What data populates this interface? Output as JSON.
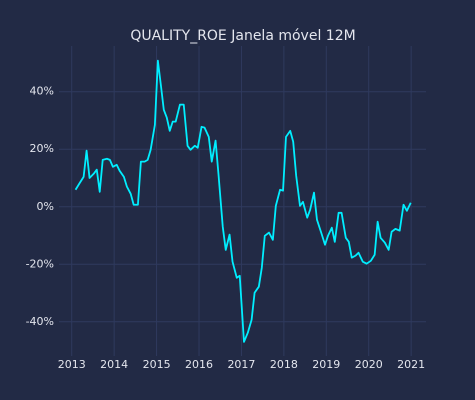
{
  "chart_data": {
    "type": "line",
    "title": "QUALITY_ROE Janela móvel 12M",
    "x": [
      2013.09,
      2013.19,
      2013.28,
      2013.35,
      2013.42,
      2013.52,
      2013.59,
      2013.66,
      2013.73,
      2013.83,
      2013.9,
      2013.97,
      2014.06,
      2014.13,
      2014.23,
      2014.3,
      2014.39,
      2014.46,
      2014.56,
      2014.63,
      2014.72,
      2014.79,
      2014.86,
      2014.96,
      2015.03,
      2015.1,
      2015.17,
      2015.24,
      2015.31,
      2015.38,
      2015.45,
      2015.55,
      2015.64,
      2015.73,
      2015.8,
      2015.9,
      2015.97,
      2016.06,
      2016.13,
      2016.23,
      2016.3,
      2016.39,
      2016.46,
      2016.56,
      2016.63,
      2016.72,
      2016.79,
      2016.89,
      2016.96,
      2017.06,
      2017.15,
      2017.24,
      2017.31,
      2017.41,
      2017.48,
      2017.55,
      2017.65,
      2017.74,
      2017.81,
      2017.91,
      2017.98,
      2018.05,
      2018.15,
      2018.22,
      2018.29,
      2018.38,
      2018.45,
      2018.55,
      2018.62,
      2018.71,
      2018.78,
      2018.88,
      2018.97,
      2019.04,
      2019.13,
      2019.2,
      2019.29,
      2019.36,
      2019.46,
      2019.53,
      2019.6,
      2019.69,
      2019.76,
      2019.86,
      2019.95,
      2020.05,
      2020.14,
      2020.21,
      2020.28,
      2020.38,
      2020.47,
      2020.54,
      2020.63,
      2020.73,
      2020.82,
      2020.9,
      2020.99
    ],
    "series": [
      {
        "name": "QUALITY_ROE",
        "color": "#00eeff",
        "values": [
          5.9,
          8.3,
          10.4,
          19.5,
          10,
          11.5,
          12.9,
          5.2,
          16.3,
          16.7,
          16.3,
          13.9,
          14.6,
          12.5,
          10.4,
          7,
          4.5,
          0.7,
          0.7,
          15.7,
          15.7,
          16.3,
          19.8,
          28.5,
          50.8,
          42.4,
          33.7,
          31,
          26.4,
          29.6,
          29.6,
          35.5,
          35.5,
          21.2,
          19.8,
          21.2,
          20.5,
          27.8,
          27.5,
          24.3,
          15.7,
          23,
          11.1,
          -7,
          -15,
          -9.7,
          -19.1,
          -24.7,
          -24,
          -47,
          -43.8,
          -39.3,
          -29.9,
          -27.8,
          -21.2,
          -10.1,
          -9,
          -11.5,
          0.3,
          5.9,
          5.6,
          24.3,
          26.4,
          22.6,
          10.8,
          0.3,
          1.7,
          -3.8,
          -1,
          4.9,
          -4.5,
          -9,
          -13.2,
          -10.1,
          -7.3,
          -12.2,
          -2.1,
          -2.1,
          -10.8,
          -12.2,
          -17.7,
          -17,
          -16,
          -19.1,
          -19.8,
          -18.8,
          -16.7,
          -5.2,
          -10.8,
          -12.5,
          -15,
          -8.7,
          -7.7,
          -8.3,
          0.7,
          -1.4,
          1.4
        ]
      }
    ],
    "xlim": [
      2012.7,
      2021.35
    ],
    "xticks": [
      2013,
      2014,
      2015,
      2016,
      2017,
      2018,
      2019,
      2020,
      2021
    ],
    "ylim": [
      -51.9,
      55.9
    ],
    "yticks": [
      {
        "value": -40,
        "label": "-40%"
      },
      {
        "value": -20,
        "label": "-20%"
      },
      {
        "value": 0,
        "label": "0%"
      },
      {
        "value": 20,
        "label": "20%"
      },
      {
        "value": 40,
        "label": "40%"
      }
    ],
    "grid": true
  }
}
